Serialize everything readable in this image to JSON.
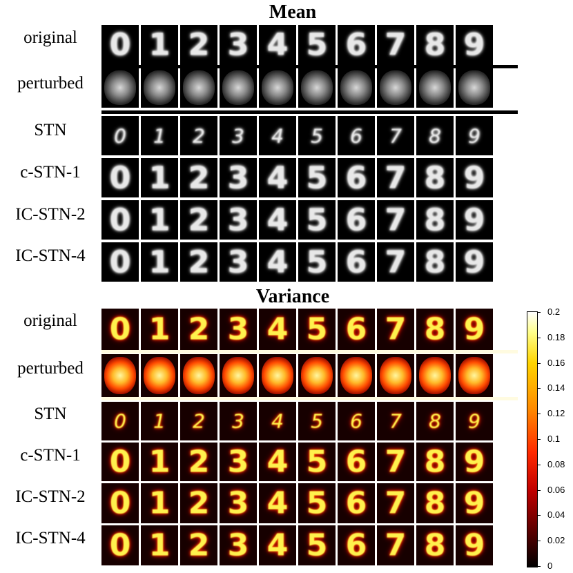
{
  "mean_section": {
    "title": "Mean",
    "rows": [
      {
        "label": "original",
        "type": "digits",
        "style": "wide"
      },
      {
        "label": "perturbed",
        "type": "blur"
      },
      {
        "label": "STN",
        "type": "digits",
        "style": "small-italic"
      },
      {
        "label": "c-STN-1",
        "type": "digits",
        "style": "wide"
      },
      {
        "label": "IC-STN-2",
        "type": "digits",
        "style": "wide"
      },
      {
        "label": "IC-STN-4",
        "type": "digits",
        "style": "wide"
      }
    ]
  },
  "variance_section": {
    "title": "Variance",
    "rows": [
      {
        "label": "original",
        "type": "digits",
        "style": "wide"
      },
      {
        "label": "perturbed",
        "type": "blur"
      },
      {
        "label": "STN",
        "type": "digits",
        "style": "small-italic"
      },
      {
        "label": "c-STN-1",
        "type": "digits",
        "style": "wide"
      },
      {
        "label": "IC-STN-2",
        "type": "digits",
        "style": "wide"
      },
      {
        "label": "IC-STN-4",
        "type": "digits",
        "style": "wide"
      }
    ]
  },
  "digits": [
    "0",
    "1",
    "2",
    "3",
    "4",
    "5",
    "6",
    "7",
    "8",
    "9"
  ],
  "colorbar": {
    "colormap": "hot",
    "ticks": [
      "0.2",
      "0.18",
      "0.16",
      "0.14",
      "0.12",
      "0.1",
      "0.08",
      "0.06",
      "0.04",
      "0.02",
      "0"
    ],
    "values": [
      0.2,
      0.18,
      0.16,
      0.14,
      0.12,
      0.1,
      0.08,
      0.06,
      0.04,
      0.02,
      0
    ]
  }
}
